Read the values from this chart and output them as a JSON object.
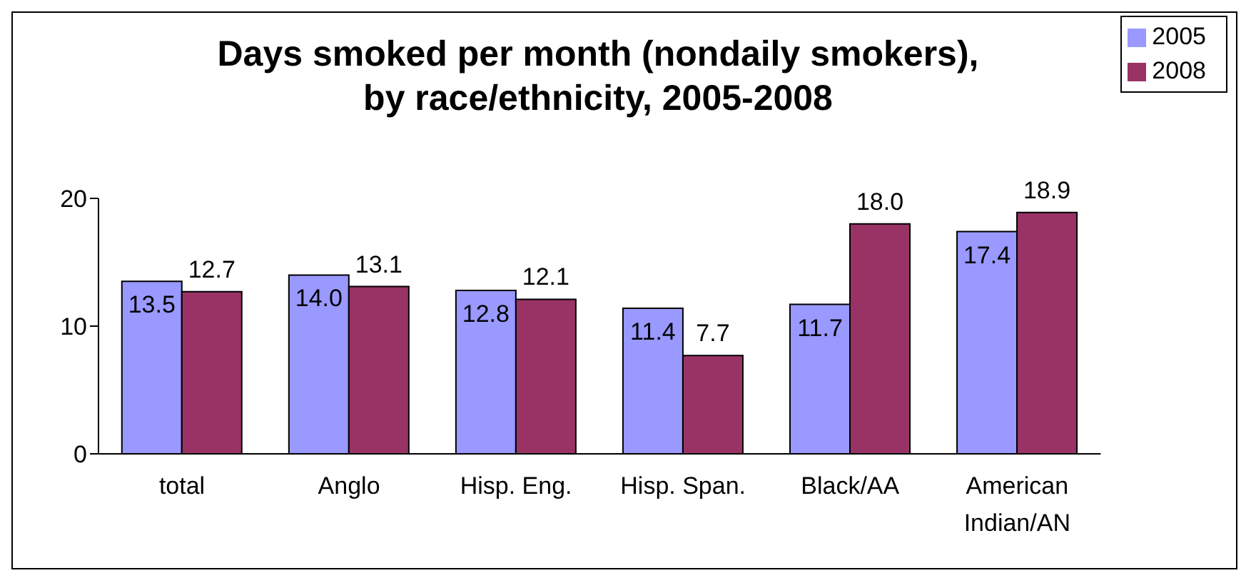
{
  "chart_data": {
    "type": "bar",
    "title": "Days smoked per month (nondaily smokers),\nby race/ethnicity, 2005-2008",
    "categories": [
      "total",
      "Anglo",
      "Hisp. Eng.",
      "Hisp. Span.",
      "Black/AA",
      "American Indian/AN"
    ],
    "series": [
      {
        "name": "2005",
        "color": "#9999ff",
        "values": [
          13.5,
          14.0,
          12.8,
          11.4,
          11.7,
          17.4
        ],
        "value_labels": [
          "13.5",
          "14.0",
          "12.8",
          "11.4",
          "11.7",
          "17.4"
        ]
      },
      {
        "name": "2008",
        "color": "#993366",
        "values": [
          12.7,
          13.1,
          12.1,
          7.7,
          18.0,
          18.9
        ],
        "value_labels": [
          "12.7",
          "13.1",
          "12.1",
          "7.7",
          "18.0",
          "18.9"
        ]
      }
    ],
    "ylim": [
      0,
      20
    ],
    "yticks": [
      0,
      10,
      20
    ],
    "legend": "top right"
  }
}
